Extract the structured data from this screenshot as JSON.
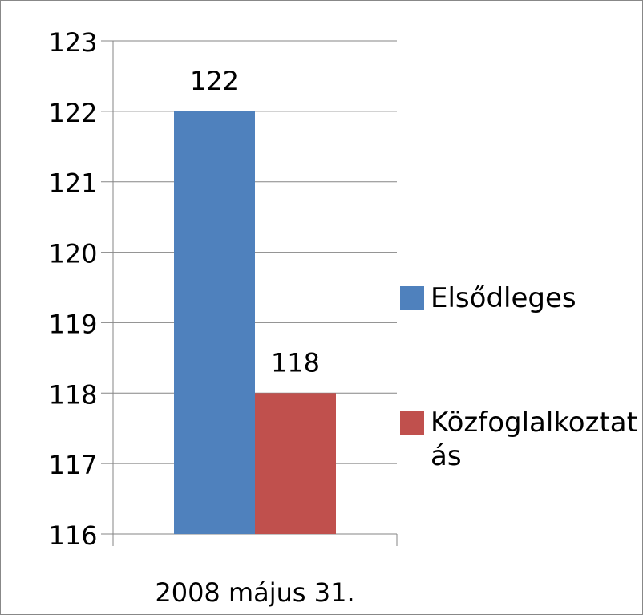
{
  "chart_data": {
    "type": "bar",
    "categories": [
      "2008 május 31."
    ],
    "series": [
      {
        "name": "Elsődleges",
        "color": "#4f81bd",
        "values": [
          122
        ]
      },
      {
        "name": "Közfoglalkoztatás",
        "color": "#c0504d",
        "values": [
          118
        ]
      }
    ],
    "ylim": [
      116,
      123
    ],
    "yticks": [
      116,
      117,
      118,
      119,
      120,
      121,
      122,
      123
    ],
    "grid": true,
    "legend": "right"
  }
}
